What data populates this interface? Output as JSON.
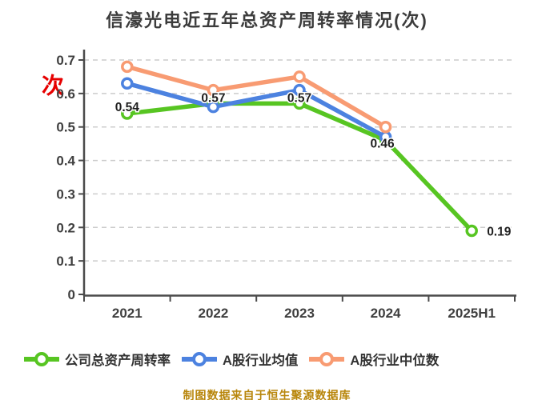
{
  "title": "信濠光电近五年总资产周转率情况(次)",
  "y_axis_unit": "次",
  "footer_note": "制图数据来自于恒生聚源数据库",
  "colors": {
    "title": "#3c3c3c",
    "axis": "#4a4a4a",
    "tick_label": "#3f3f3f",
    "gridline": "#cccccc",
    "point_label": "#1f1f1f",
    "unit_label": "#e60000",
    "footer": "#b8860b",
    "background": "#ffffff"
  },
  "chart_data": {
    "type": "line",
    "title": "信濠光电近五年总资产周转率情况(次)",
    "categories": [
      "2021",
      "2022",
      "2023",
      "2024",
      "2025H1"
    ],
    "series": [
      {
        "name": "公司总资产周转率",
        "color": "#57c522",
        "values": [
          0.54,
          0.57,
          0.57,
          0.46,
          0.19
        ],
        "point_labels": [
          "0.54",
          "0.57",
          "0.57",
          "0.46",
          "0.19"
        ]
      },
      {
        "name": "A股行业均值",
        "color": "#4c82e0",
        "values": [
          0.63,
          0.56,
          0.61,
          0.47,
          null
        ],
        "point_labels": null
      },
      {
        "name": "A股行业中位数",
        "color": "#f89b72",
        "values": [
          0.68,
          0.61,
          0.65,
          0.5,
          null
        ],
        "point_labels": null
      }
    ],
    "xlabel": "",
    "ylabel": "",
    "ylim": [
      0,
      0.7
    ],
    "yticks": [
      0,
      0.1,
      0.2,
      0.3,
      0.4,
      0.5,
      0.6,
      0.7
    ],
    "grid": true,
    "grid_style": "dashed",
    "marker": "open-circle",
    "legend_position": "bottom"
  }
}
